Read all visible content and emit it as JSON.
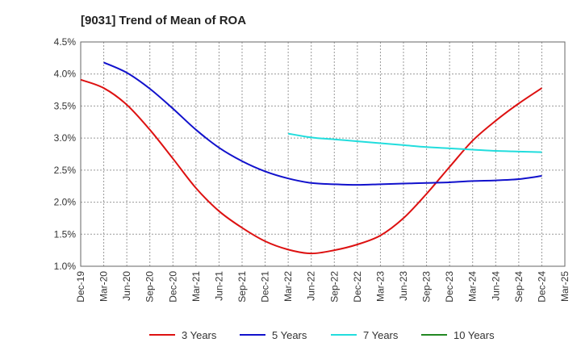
{
  "chart_data": {
    "type": "line",
    "title": "[9031]  Trend of Mean of ROA",
    "xlabel": "",
    "ylabel": "",
    "categories": [
      "Dec-19",
      "Mar-20",
      "Jun-20",
      "Sep-20",
      "Dec-20",
      "Mar-21",
      "Jun-21",
      "Sep-21",
      "Dec-21",
      "Mar-22",
      "Jun-22",
      "Sep-22",
      "Dec-22",
      "Mar-23",
      "Jun-23",
      "Sep-23",
      "Dec-23",
      "Mar-24",
      "Jun-24",
      "Sep-24",
      "Dec-24",
      "Mar-25"
    ],
    "yticks": [
      "1.0%",
      "1.5%",
      "2.0%",
      "2.5%",
      "3.0%",
      "3.5%",
      "4.0%",
      "4.5%"
    ],
    "ylim": [
      1.0,
      4.5
    ],
    "grid": true,
    "legend_position": "bottom",
    "series": [
      {
        "name": "3 Years",
        "color": "#dd1111",
        "values": [
          3.91,
          3.78,
          3.52,
          3.13,
          2.68,
          2.22,
          1.86,
          1.6,
          1.39,
          1.26,
          1.2,
          1.25,
          1.34,
          1.48,
          1.75,
          2.13,
          2.55,
          2.96,
          3.27,
          3.54,
          3.78,
          null
        ]
      },
      {
        "name": "5 Years",
        "color": "#1111cc",
        "values": [
          null,
          4.18,
          4.02,
          3.77,
          3.46,
          3.13,
          2.85,
          2.64,
          2.48,
          2.37,
          2.3,
          2.28,
          2.27,
          2.28,
          2.29,
          2.3,
          2.31,
          2.33,
          2.34,
          2.36,
          2.41,
          null
        ]
      },
      {
        "name": "7 Years",
        "color": "#22dddd",
        "values": [
          null,
          null,
          null,
          null,
          null,
          null,
          null,
          null,
          null,
          3.07,
          3.01,
          2.98,
          2.95,
          2.92,
          2.89,
          2.86,
          2.84,
          2.82,
          2.8,
          2.79,
          2.78,
          null
        ]
      },
      {
        "name": "10 Years",
        "color": "#228822",
        "values": [
          null,
          null,
          null,
          null,
          null,
          null,
          null,
          null,
          null,
          null,
          null,
          null,
          null,
          null,
          null,
          null,
          null,
          null,
          null,
          null,
          null,
          null
        ]
      }
    ]
  }
}
